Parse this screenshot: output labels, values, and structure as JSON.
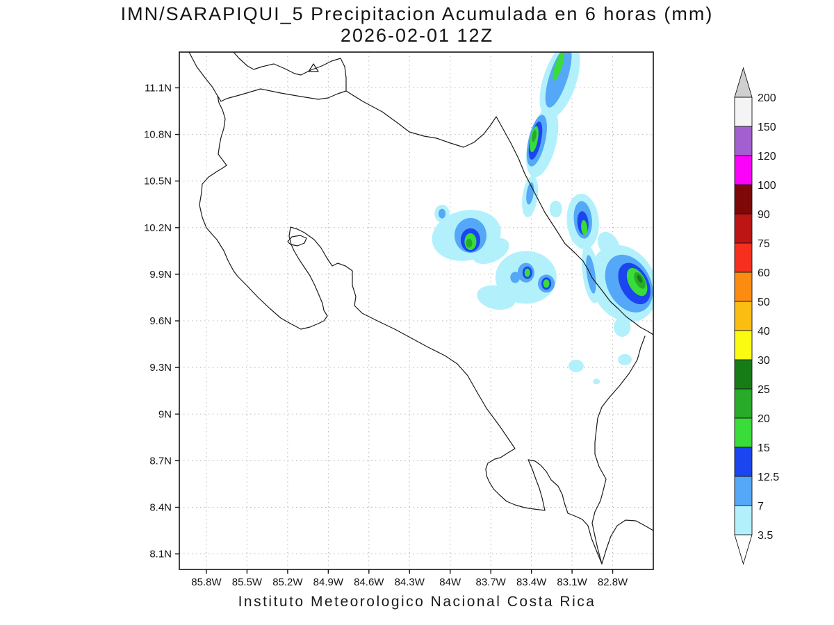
{
  "title": {
    "line1": "IMN/SARAPIQUI_5 Precipitacion Acumulada en 6 horas (mm)",
    "line2": "2026-02-01 12Z"
  },
  "footer": "Instituto Meteorologico Nacional Costa Rica",
  "chart_data": {
    "type": "heatmap",
    "subtype": "shaded-precipitation-contour-map",
    "title": "IMN/SARAPIQUI_5 Precipitacion Acumulada en 6 horas (mm)",
    "valid_time": "2026-02-01 12Z",
    "units": "mm",
    "region": "Costa Rica",
    "legend_position": "right",
    "grid": true,
    "lon_range": [
      -86.0,
      -82.5
    ],
    "lat_range": [
      8.0,
      11.33
    ],
    "lat_ticks": [
      {
        "deg": 11.1,
        "label": "11.1N"
      },
      {
        "deg": 10.8,
        "label": "10.8N"
      },
      {
        "deg": 10.5,
        "label": "10.5N"
      },
      {
        "deg": 10.2,
        "label": "10.2N"
      },
      {
        "deg": 9.9,
        "label": "9.9N"
      },
      {
        "deg": 9.6,
        "label": "9.6N"
      },
      {
        "deg": 9.3,
        "label": "9.3N"
      },
      {
        "deg": 9.0,
        "label": "9N"
      },
      {
        "deg": 8.7,
        "label": "8.7N"
      },
      {
        "deg": 8.4,
        "label": "8.4N"
      },
      {
        "deg": 8.1,
        "label": "8.1N"
      }
    ],
    "lon_ticks": [
      {
        "deg": -85.8,
        "label": "85.8W"
      },
      {
        "deg": -85.5,
        "label": "85.5W"
      },
      {
        "deg": -85.2,
        "label": "85.2W"
      },
      {
        "deg": -84.9,
        "label": "84.9W"
      },
      {
        "deg": -84.6,
        "label": "84.6W"
      },
      {
        "deg": -84.3,
        "label": "84.3W"
      },
      {
        "deg": -84.0,
        "label": "84W"
      },
      {
        "deg": -83.7,
        "label": "83.7W"
      },
      {
        "deg": -83.4,
        "label": "83.4W"
      },
      {
        "deg": -83.1,
        "label": "83.1W"
      },
      {
        "deg": -82.8,
        "label": "82.8W"
      }
    ],
    "colorbar_labels": [
      "3.5",
      "7",
      "12.5",
      "15",
      "20",
      "25",
      "30",
      "40",
      "50",
      "60",
      "75",
      "90",
      "100",
      "120",
      "150",
      "200"
    ],
    "palette": [
      {
        "min": 0,
        "color": "#ffffff"
      },
      {
        "min": 3.5,
        "color": "#b2f1fb"
      },
      {
        "min": 7,
        "color": "#55a7f7"
      },
      {
        "min": 12.5,
        "color": "#1a45ef"
      },
      {
        "min": 15,
        "color": "#39dc39"
      },
      {
        "min": 20,
        "color": "#28ab28"
      },
      {
        "min": 25,
        "color": "#167d16"
      },
      {
        "min": 30,
        "color": "#fbfb12"
      },
      {
        "min": 40,
        "color": "#fcbd12"
      },
      {
        "min": 50,
        "color": "#fc8b12"
      },
      {
        "min": 60,
        "color": "#f62f1f"
      },
      {
        "min": 75,
        "color": "#bd1414"
      },
      {
        "min": 90,
        "color": "#7e0808"
      },
      {
        "min": 100,
        "color": "#fb02fb"
      },
      {
        "min": 120,
        "color": "#a35fd0"
      },
      {
        "min": 150,
        "color": "#f4f4f4"
      },
      {
        "min": 200,
        "color": "#cfcfcf"
      }
    ],
    "cell_format": "[lon_deg, lat_deg, radius_lon_deg, radius_lat_deg, rotation_deg, precip_mm_band_min]",
    "precip_cells": [
      [
        -83.19,
        11.15,
        0.123,
        0.259,
        18,
        3.5
      ],
      [
        -83.32,
        10.75,
        0.103,
        0.232,
        14,
        3.5
      ],
      [
        -83.41,
        10.4,
        0.056,
        0.134,
        8,
        3.5
      ],
      [
        -83.22,
        10.32,
        0.046,
        0.054,
        0,
        3.5
      ],
      [
        -83.88,
        10.15,
        0.257,
        0.161,
        -12,
        3.5
      ],
      [
        -83.7,
        10.05,
        0.144,
        0.072,
        -25,
        3.5
      ],
      [
        -84.06,
        10.29,
        0.056,
        0.058,
        0,
        3.5
      ],
      [
        -83.44,
        9.88,
        0.226,
        0.17,
        0,
        3.5
      ],
      [
        -83.66,
        9.75,
        0.144,
        0.076,
        12,
        3.5
      ],
      [
        -83.02,
        10.24,
        0.118,
        0.179,
        -5,
        3.5
      ],
      [
        -82.96,
        9.9,
        0.062,
        0.188,
        -8,
        3.5
      ],
      [
        -82.72,
        9.84,
        0.236,
        0.259,
        -28,
        3.5
      ],
      [
        -82.83,
        10.09,
        0.072,
        0.089,
        -30,
        3.5
      ],
      [
        -82.73,
        9.56,
        0.062,
        0.063,
        0,
        3.5
      ],
      [
        -83.07,
        9.31,
        0.056,
        0.04,
        0,
        3.5
      ],
      [
        -82.71,
        9.35,
        0.051,
        0.036,
        0,
        3.5
      ],
      [
        -82.92,
        9.21,
        0.026,
        0.018,
        0,
        3.5
      ],
      [
        -83.2,
        11.17,
        0.067,
        0.206,
        18,
        7
      ],
      [
        -83.36,
        10.76,
        0.062,
        0.17,
        13,
        7
      ],
      [
        -83.85,
        10.15,
        0.118,
        0.112,
        0,
        7
      ],
      [
        -84.06,
        10.29,
        0.026,
        0.031,
        0,
        7
      ],
      [
        -83.44,
        9.91,
        0.062,
        0.063,
        0,
        7
      ],
      [
        -83.29,
        9.84,
        0.062,
        0.058,
        0,
        7
      ],
      [
        -83.52,
        9.88,
        0.036,
        0.036,
        0,
        7
      ],
      [
        -83.02,
        10.25,
        0.067,
        0.121,
        -5,
        7
      ],
      [
        -82.96,
        9.9,
        0.031,
        0.125,
        -8,
        7
      ],
      [
        -82.68,
        9.84,
        0.159,
        0.197,
        -28,
        7
      ],
      [
        -83.41,
        10.42,
        0.026,
        0.072,
        8,
        7
      ],
      [
        -83.85,
        10.12,
        0.072,
        0.076,
        0,
        12.5
      ],
      [
        -83.43,
        9.91,
        0.036,
        0.04,
        0,
        12.5
      ],
      [
        -83.29,
        9.84,
        0.036,
        0.04,
        0,
        12.5
      ],
      [
        -83.02,
        10.23,
        0.041,
        0.076,
        -5,
        12.5
      ],
      [
        -82.64,
        9.84,
        0.103,
        0.143,
        -28,
        12.5
      ],
      [
        -83.37,
        10.76,
        0.041,
        0.125,
        12,
        12.5
      ],
      [
        -83.38,
        10.77,
        0.028,
        0.085,
        10,
        15
      ],
      [
        -83.85,
        10.11,
        0.044,
        0.054,
        0,
        15
      ],
      [
        -83.43,
        9.91,
        0.021,
        0.027,
        0,
        15
      ],
      [
        -83.29,
        9.84,
        0.023,
        0.027,
        0,
        15
      ],
      [
        -83.01,
        10.2,
        0.023,
        0.049,
        -5,
        15
      ],
      [
        -82.62,
        9.85,
        0.062,
        0.098,
        -28,
        15
      ],
      [
        -83.2,
        11.24,
        0.026,
        0.098,
        18,
        15
      ],
      [
        -83.38,
        10.79,
        0.015,
        0.04,
        10,
        20
      ],
      [
        -83.86,
        10.1,
        0.023,
        0.029,
        0,
        20
      ],
      [
        -82.6,
        9.86,
        0.033,
        0.058,
        -28,
        20
      ],
      [
        -82.6,
        9.87,
        0.015,
        0.027,
        -28,
        25
      ]
    ]
  }
}
